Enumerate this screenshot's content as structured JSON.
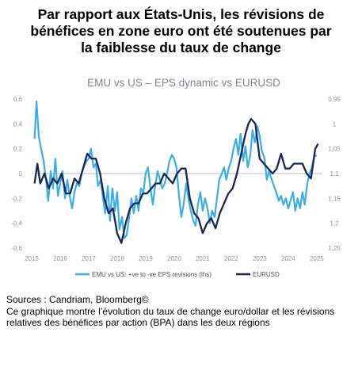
{
  "headline": {
    "line1": "Par rapport aux États-Unis, les révisions de",
    "line2": "bénéfices en zone euro ont été soutenues par",
    "line3": "la faiblesse du taux de change"
  },
  "footer": {
    "sources": "Sources : Candriam, Bloomberg©",
    "caption": "Ce graphique montre l’évolution du taux de change euro/dollar et les révisions relatives des bénéfices par action (BPA) dans les deux régions"
  },
  "colors": {
    "eps": "#3aaee8",
    "eurusd": "#1a2456",
    "axis": "#8a94a6",
    "title": "#7d8694"
  },
  "chart_data": {
    "type": "line",
    "title": "EMU vs US – EPS dynamic vs EURUSD",
    "xlim": [
      2015,
      2025.2
    ],
    "x_ticks": [
      "2015",
      "2016",
      "2017",
      "2018",
      "2019",
      "2020",
      "2021",
      "2022",
      "2023",
      "2024",
      "2025"
    ],
    "y_left": {
      "lim": [
        -0.6,
        0.6
      ],
      "inverted": false,
      "ticks": [
        "0,6",
        "0,4",
        "0,2",
        "0",
        "-0,2",
        "-0,4",
        "-0,6"
      ]
    },
    "y_right": {
      "lim": [
        0.95,
        1.25
      ],
      "inverted": true,
      "ticks": [
        "0,95",
        "1",
        "1,05",
        "1,1",
        "1,15",
        "1,2",
        "1,25"
      ]
    },
    "legend_position": "bottom",
    "series": [
      {
        "name": "EMU vs US: +ve to -ve EPS revisions (lhs)",
        "axis": "left",
        "x": [
          2015.1,
          2015.17,
          2015.25,
          2015.33,
          2015.42,
          2015.5,
          2015.58,
          2015.67,
          2015.75,
          2015.83,
          2015.92,
          2016.0,
          2016.08,
          2016.17,
          2016.25,
          2016.33,
          2016.42,
          2016.5,
          2016.58,
          2016.67,
          2016.75,
          2016.83,
          2016.92,
          2017.0,
          2017.08,
          2017.17,
          2017.25,
          2017.33,
          2017.42,
          2017.5,
          2017.58,
          2017.67,
          2017.75,
          2017.83,
          2017.92,
          2018.0,
          2018.08,
          2018.17,
          2018.25,
          2018.33,
          2018.42,
          2018.5,
          2018.58,
          2018.67,
          2018.75,
          2018.83,
          2018.92,
          2019.0,
          2019.08,
          2019.17,
          2019.25,
          2019.33,
          2019.42,
          2019.5,
          2019.58,
          2019.67,
          2019.75,
          2019.83,
          2019.92,
          2020.0,
          2020.08,
          2020.17,
          2020.25,
          2020.33,
          2020.42,
          2020.5,
          2020.58,
          2020.67,
          2020.75,
          2020.83,
          2020.92,
          2021.0,
          2021.08,
          2021.17,
          2021.25,
          2021.33,
          2021.42,
          2021.5,
          2021.58,
          2021.67,
          2021.75,
          2021.83,
          2021.92,
          2022.0,
          2022.08,
          2022.17,
          2022.25,
          2022.33,
          2022.42,
          2022.5,
          2022.58,
          2022.67,
          2022.75,
          2022.83,
          2022.92,
          2023.0,
          2023.08,
          2023.17,
          2023.25,
          2023.33,
          2023.42,
          2023.5,
          2023.58,
          2023.67,
          2023.75,
          2023.83,
          2023.92,
          2024.0,
          2024.08,
          2024.17,
          2024.25,
          2024.33,
          2024.42,
          2024.5,
          2024.58,
          2024.67,
          2024.75,
          2024.83,
          2024.92,
          2025.0
        ],
        "values": [
          0.28,
          0.58,
          0.3,
          0.2,
          0.1,
          -0.05,
          -0.22,
          0.02,
          -0.12,
          0.12,
          -0.18,
          -0.08,
          0.02,
          -0.2,
          -0.05,
          -0.18,
          -0.28,
          -0.15,
          -0.08,
          -0.1,
          0.0,
          0.05,
          0.1,
          0.12,
          0.2,
          0.05,
          0.08,
          -0.1,
          -0.05,
          -0.2,
          -0.32,
          -0.1,
          -0.38,
          -0.12,
          -0.3,
          -0.15,
          -0.45,
          -0.35,
          -0.52,
          -0.5,
          -0.35,
          -0.2,
          -0.32,
          -0.18,
          -0.3,
          -0.12,
          -0.15,
          0.0,
          0.05,
          -0.12,
          -0.25,
          -0.1,
          0.02,
          -0.05,
          -0.12,
          -0.08,
          0.0,
          0.1,
          0.15,
          0.12,
          0.05,
          -0.18,
          -0.35,
          -0.25,
          -0.08,
          -0.2,
          -0.3,
          -0.38,
          -0.42,
          -0.25,
          -0.15,
          -0.3,
          -0.2,
          -0.28,
          -0.4,
          -0.3,
          -0.35,
          -0.2,
          -0.05,
          0.0,
          0.05,
          -0.05,
          0.05,
          0.1,
          0.2,
          0.28,
          0.15,
          0.32,
          0.1,
          0.22,
          0.05,
          0.15,
          0.35,
          0.25,
          0.38,
          0.3,
          0.18,
          0.12,
          -0.05,
          0.02,
          -0.05,
          -0.1,
          -0.15,
          -0.22,
          -0.18,
          -0.25,
          -0.2,
          -0.28,
          -0.22,
          -0.15,
          -0.3,
          -0.2,
          -0.28,
          -0.15,
          -0.25,
          -0.08,
          0.0,
          0.05,
          0.15,
          0.14
        ]
      },
      {
        "name": "EURUSD",
        "axis": "right",
        "x": [
          2015.1,
          2015.2,
          2015.3,
          2015.45,
          2015.6,
          2015.75,
          2015.9,
          2016.05,
          2016.2,
          2016.35,
          2016.5,
          2016.65,
          2016.8,
          2016.95,
          2017.1,
          2017.25,
          2017.4,
          2017.55,
          2017.7,
          2017.85,
          2018.0,
          2018.15,
          2018.3,
          2018.45,
          2018.6,
          2018.75,
          2018.9,
          2019.05,
          2019.2,
          2019.35,
          2019.5,
          2019.65,
          2019.8,
          2019.95,
          2020.1,
          2020.25,
          2020.4,
          2020.55,
          2020.7,
          2020.85,
          2021.0,
          2021.15,
          2021.3,
          2021.45,
          2021.6,
          2021.75,
          2021.9,
          2022.05,
          2022.2,
          2022.35,
          2022.5,
          2022.6,
          2022.7,
          2022.85,
          2023.0,
          2023.15,
          2023.3,
          2023.45,
          2023.6,
          2023.75,
          2023.9,
          2024.05,
          2024.2,
          2024.35,
          2024.5,
          2024.65,
          2024.8,
          2024.95,
          2025.05
        ],
        "values": [
          1.12,
          1.08,
          1.12,
          1.1,
          1.13,
          1.11,
          1.12,
          1.1,
          1.14,
          1.14,
          1.11,
          1.12,
          1.09,
          1.06,
          1.07,
          1.07,
          1.1,
          1.15,
          1.18,
          1.17,
          1.22,
          1.24,
          1.2,
          1.17,
          1.16,
          1.16,
          1.14,
          1.14,
          1.13,
          1.12,
          1.12,
          1.1,
          1.11,
          1.12,
          1.1,
          1.09,
          1.09,
          1.15,
          1.18,
          1.19,
          1.22,
          1.2,
          1.19,
          1.21,
          1.18,
          1.16,
          1.14,
          1.13,
          1.1,
          1.06,
          1.02,
          1.0,
          0.99,
          1.0,
          1.07,
          1.08,
          1.09,
          1.1,
          1.09,
          1.06,
          1.09,
          1.09,
          1.08,
          1.08,
          1.08,
          1.1,
          1.11,
          1.05,
          1.04
        ]
      }
    ]
  }
}
